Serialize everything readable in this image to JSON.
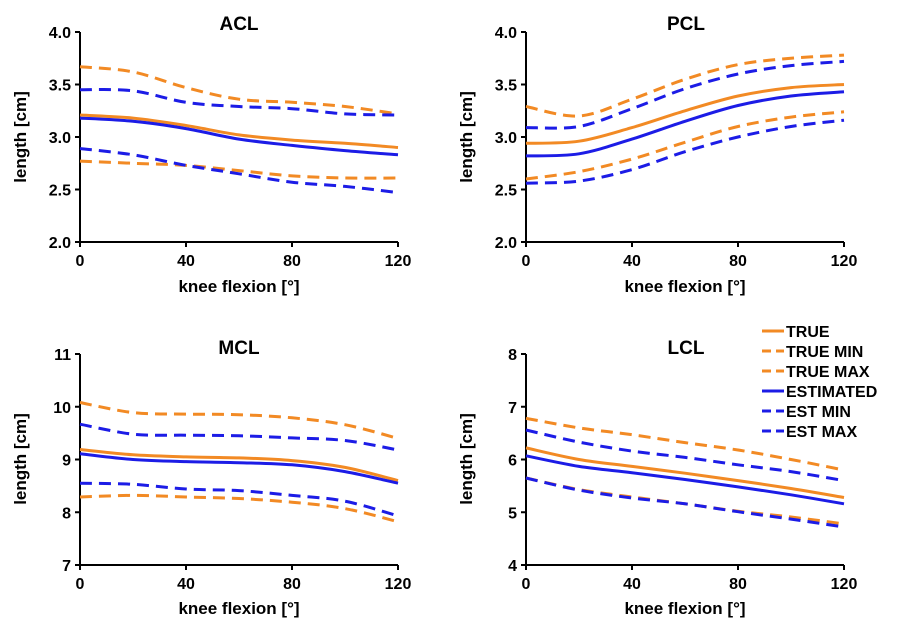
{
  "figure": {
    "legend": [
      {
        "label": "TRUE",
        "color": "#f28a24",
        "dash": "solid"
      },
      {
        "label": "TRUE MIN",
        "color": "#f28a24",
        "dash": "dashed"
      },
      {
        "label": "TRUE MAX",
        "color": "#f28a24",
        "dash": "dashed"
      },
      {
        "label": "ESTIMATED",
        "color": "#1c1ce6",
        "dash": "solid"
      },
      {
        "label": "EST MIN",
        "color": "#1c1ce6",
        "dash": "dashed"
      },
      {
        "label": "EST MAX",
        "color": "#1c1ce6",
        "dash": "dashed"
      }
    ],
    "colors": {
      "true": "#f28a24",
      "estimated": "#1c1ce6"
    }
  },
  "chart_data": [
    {
      "type": "line",
      "title": "ACL",
      "xlabel": "knee flexion [°]",
      "ylabel": "length [cm]",
      "xlim": [
        0,
        120
      ],
      "ylim": [
        2.0,
        4.0
      ],
      "xticks": [
        "0",
        "40",
        "80",
        "120"
      ],
      "yticks": [
        "2.0",
        "2.5",
        "3.0",
        "3.5",
        "4.0"
      ],
      "x": [
        0,
        20,
        40,
        60,
        80,
        100,
        120
      ],
      "series": [
        {
          "name": "TRUE",
          "values": [
            3.21,
            3.18,
            3.11,
            3.02,
            2.97,
            2.94,
            2.9
          ]
        },
        {
          "name": "TRUE MIN",
          "values": [
            2.77,
            2.75,
            2.73,
            2.68,
            2.63,
            2.61,
            2.61
          ]
        },
        {
          "name": "TRUE MAX",
          "values": [
            3.67,
            3.62,
            3.47,
            3.36,
            3.33,
            3.29,
            3.22
          ]
        },
        {
          "name": "ESTIMATED",
          "values": [
            3.18,
            3.15,
            3.08,
            2.98,
            2.92,
            2.87,
            2.83
          ]
        },
        {
          "name": "EST MIN",
          "values": [
            2.89,
            2.83,
            2.73,
            2.65,
            2.57,
            2.53,
            2.47
          ]
        },
        {
          "name": "EST MAX",
          "values": [
            3.45,
            3.44,
            3.33,
            3.29,
            3.27,
            3.22,
            3.21
          ]
        }
      ]
    },
    {
      "type": "line",
      "title": "PCL",
      "xlabel": "knee flexion [°]",
      "ylabel": "length [cm]",
      "xlim": [
        0,
        120
      ],
      "ylim": [
        2.0,
        4.0
      ],
      "xticks": [
        "0",
        "40",
        "80",
        "120"
      ],
      "yticks": [
        "2.0",
        "2.5",
        "3.0",
        "3.5",
        "4.0"
      ],
      "x": [
        0,
        20,
        40,
        60,
        80,
        100,
        120
      ],
      "series": [
        {
          "name": "TRUE",
          "values": [
            2.94,
            2.96,
            3.09,
            3.25,
            3.39,
            3.47,
            3.5
          ]
        },
        {
          "name": "TRUE MIN",
          "values": [
            2.6,
            2.67,
            2.79,
            2.95,
            3.1,
            3.19,
            3.24
          ]
        },
        {
          "name": "TRUE MAX",
          "values": [
            3.29,
            3.2,
            3.36,
            3.55,
            3.69,
            3.75,
            3.78
          ]
        },
        {
          "name": "ESTIMATED",
          "values": [
            2.82,
            2.84,
            2.98,
            3.15,
            3.3,
            3.39,
            3.43
          ]
        },
        {
          "name": "EST MIN",
          "values": [
            2.56,
            2.58,
            2.69,
            2.86,
            3.0,
            3.1,
            3.16
          ]
        },
        {
          "name": "EST MAX",
          "values": [
            3.09,
            3.1,
            3.27,
            3.46,
            3.6,
            3.68,
            3.72
          ]
        }
      ]
    },
    {
      "type": "line",
      "title": "MCL",
      "xlabel": "knee flexion [°]",
      "ylabel": "length [cm]",
      "xlim": [
        0,
        120
      ],
      "ylim": [
        7,
        11
      ],
      "xticks": [
        "0",
        "40",
        "80",
        "120"
      ],
      "yticks": [
        "7",
        "8",
        "9",
        "10",
        "11"
      ],
      "x": [
        0,
        20,
        40,
        60,
        80,
        100,
        120
      ],
      "series": [
        {
          "name": "TRUE",
          "values": [
            9.19,
            9.09,
            9.05,
            9.03,
            8.98,
            8.85,
            8.6
          ]
        },
        {
          "name": "TRUE MIN",
          "values": [
            8.29,
            8.32,
            8.29,
            8.26,
            8.19,
            8.07,
            7.82
          ]
        },
        {
          "name": "TRUE MAX",
          "values": [
            10.08,
            9.89,
            9.86,
            9.85,
            9.79,
            9.66,
            9.4
          ]
        },
        {
          "name": "ESTIMATED",
          "values": [
            9.11,
            9.0,
            8.96,
            8.94,
            8.9,
            8.77,
            8.55
          ]
        },
        {
          "name": "EST MIN",
          "values": [
            8.55,
            8.53,
            8.44,
            8.41,
            8.32,
            8.21,
            7.93
          ]
        },
        {
          "name": "EST MAX",
          "values": [
            9.67,
            9.48,
            9.46,
            9.45,
            9.41,
            9.36,
            9.18
          ]
        }
      ]
    },
    {
      "type": "line",
      "title": "LCL",
      "xlabel": "knee flexion [°]",
      "ylabel": "length [cm]",
      "xlim": [
        0,
        120
      ],
      "ylim": [
        4,
        8
      ],
      "xticks": [
        "0",
        "40",
        "80",
        "120"
      ],
      "yticks": [
        "4",
        "5",
        "6",
        "7",
        "8"
      ],
      "x": [
        0,
        20,
        40,
        60,
        80,
        100,
        120
      ],
      "series": [
        {
          "name": "TRUE",
          "values": [
            6.22,
            6.0,
            5.87,
            5.74,
            5.6,
            5.45,
            5.28
          ]
        },
        {
          "name": "TRUE MIN",
          "values": [
            5.65,
            5.43,
            5.29,
            5.16,
            5.02,
            4.91,
            4.78
          ]
        },
        {
          "name": "TRUE MAX",
          "values": [
            6.78,
            6.6,
            6.47,
            6.32,
            6.18,
            6.0,
            5.8
          ]
        },
        {
          "name": "ESTIMATED",
          "values": [
            6.07,
            5.87,
            5.75,
            5.62,
            5.48,
            5.33,
            5.16
          ]
        },
        {
          "name": "EST MIN",
          "values": [
            5.65,
            5.42,
            5.27,
            5.16,
            5.01,
            4.87,
            4.72
          ]
        },
        {
          "name": "EST MAX",
          "values": [
            6.56,
            6.33,
            6.16,
            6.04,
            5.9,
            5.77,
            5.6
          ]
        }
      ]
    }
  ]
}
